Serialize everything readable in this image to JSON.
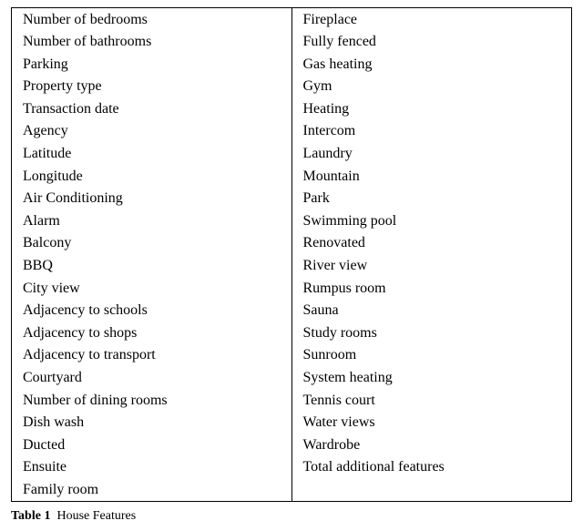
{
  "table": {
    "left": [
      "Number of bedrooms",
      "Number of bathrooms",
      "Parking",
      "Property type",
      "Transaction date",
      "Agency",
      "Latitude",
      "Longitude",
      "Air Conditioning",
      "Alarm",
      "Balcony",
      "BBQ",
      "City view",
      "Adjacency to schools",
      "Adjacency to shops",
      "Adjacency to transport",
      "Courtyard",
      "Number of dining rooms",
      "Dish wash",
      "Ducted",
      "Ensuite",
      "Family room"
    ],
    "right": [
      "Fireplace",
      "Fully fenced",
      "Gas heating",
      "Gym",
      "Heating",
      "Intercom",
      "Laundry",
      "Mountain",
      "Park",
      "Swimming pool",
      "Renovated",
      "River view",
      "Rumpus room",
      "Sauna",
      "Study rooms",
      "Sunroom",
      "System heating",
      "Tennis court",
      "Water views",
      "Wardrobe",
      "Total additional features",
      ""
    ]
  },
  "caption": {
    "label": "Table 1",
    "text": "House Features"
  },
  "colors": {
    "text": "#000000",
    "border": "#000000",
    "background": "#ffffff"
  },
  "typography": {
    "body_font_family": "Times New Roman",
    "body_font_size_pt": 12,
    "caption_font_size_pt": 10
  }
}
